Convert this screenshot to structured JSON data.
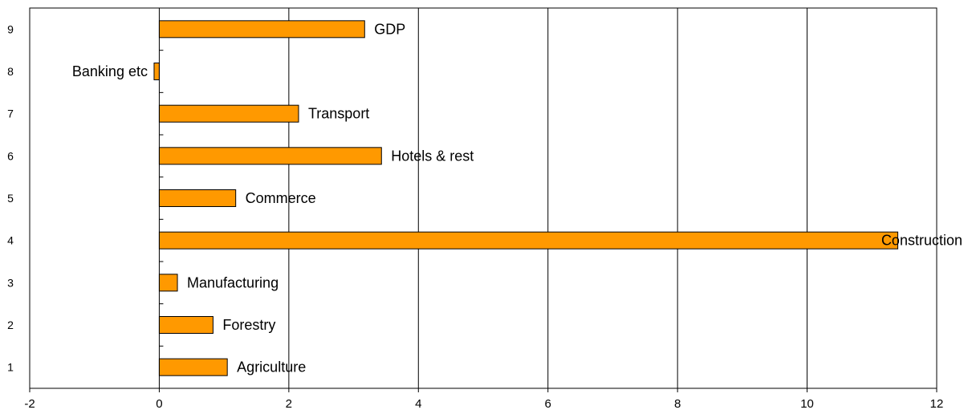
{
  "chart_data": {
    "type": "bar",
    "orientation": "horizontal",
    "categories": [
      "1",
      "2",
      "3",
      "4",
      "5",
      "6",
      "7",
      "8",
      "9"
    ],
    "bar_labels": [
      "Agriculture",
      "Forestry",
      "Manufacturing",
      "Construction",
      "Commerce",
      "Hotels & rest",
      "Transport",
      "Banking etc",
      "GDP"
    ],
    "values": [
      1.05,
      0.83,
      0.28,
      11.4,
      1.18,
      3.43,
      2.15,
      -0.08,
      3.17
    ],
    "xlim": [
      -2,
      12
    ],
    "xticks": [
      "-2",
      "0",
      "2",
      "4",
      "6",
      "8",
      "10",
      "12"
    ],
    "grid": "vertical",
    "bar_color": "#ff9900",
    "title": "",
    "xlabel": "",
    "ylabel": ""
  }
}
